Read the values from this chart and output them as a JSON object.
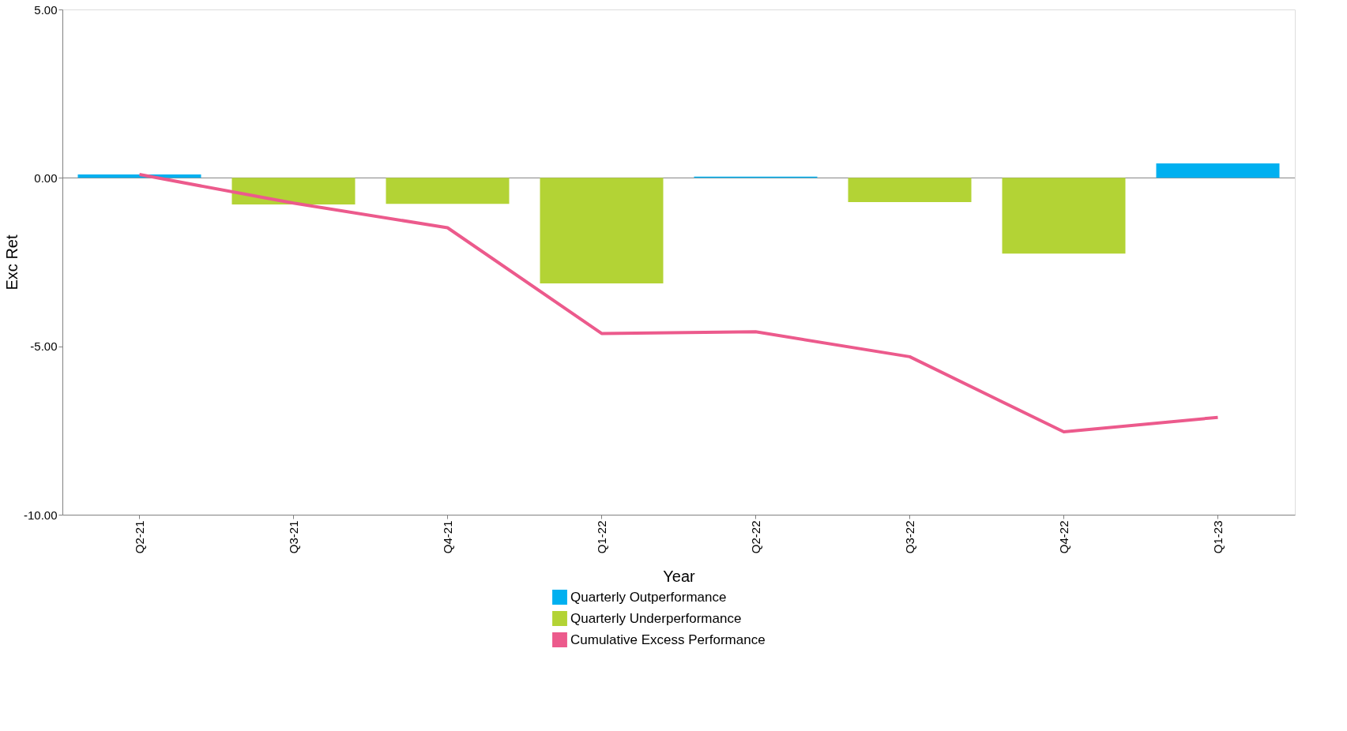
{
  "chart_data": {
    "type": "bar",
    "xlabel": "Year",
    "ylabel": "Exc Ret",
    "categories": [
      "Q2-21",
      "Q3-21",
      "Q4-21",
      "Q1-22",
      "Q2-22",
      "Q3-22",
      "Q4-22",
      "Q1-23"
    ],
    "series": [
      {
        "name": "Quarterly Outperformance",
        "color": "#00b0f0",
        "values": [
          0.1,
          null,
          null,
          null,
          0.04,
          null,
          null,
          0.43
        ]
      },
      {
        "name": "Quarterly Underperformance",
        "color": "#b3d335",
        "values": [
          null,
          -0.79,
          -0.77,
          -3.13,
          null,
          -0.72,
          -2.25,
          null
        ]
      },
      {
        "name": "Cumulative Excess Performance",
        "type": "line",
        "color": "#ec5a8c",
        "values": [
          0.1,
          -0.75,
          -1.48,
          -4.62,
          -4.57,
          -5.31,
          -7.54,
          -7.11
        ]
      }
    ],
    "ylim": [
      -10,
      5
    ],
    "yticks": [
      {
        "value": -10,
        "label": "-10.00"
      },
      {
        "value": -5,
        "label": "-5.00"
      },
      {
        "value": 0,
        "label": "0.00"
      },
      {
        "value": 5,
        "label": "5.00"
      }
    ],
    "ref_lines": [
      {
        "axis": "y",
        "value": 0,
        "label": null,
        "color": "#808080"
      }
    ],
    "grid": false,
    "legend": "bottom"
  }
}
